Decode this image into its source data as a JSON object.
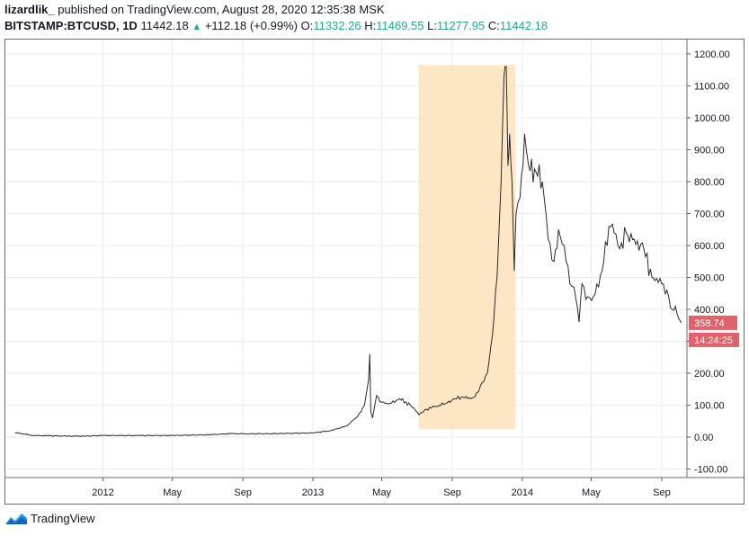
{
  "header": {
    "author": "lizardlik_",
    "published_text": "published on TradingView.com, August 28, 2020 12:35:38 MSK",
    "symbol": "BITSTAMP:BTCUSD, 1D",
    "last": "11442.18",
    "change": "+112.18 (+0.99%)",
    "o_label": "O:",
    "o_value": "11332.26",
    "h_label": "H:",
    "h_value": "11469.55",
    "l_label": "L:",
    "l_value": "11277.95",
    "c_label": "C:",
    "c_value": "11442.18"
  },
  "footer": {
    "brand": "TradingView"
  },
  "colors": {
    "line": "#2a2a2a",
    "highlight": "#fde3bd",
    "badge": "#e0636b",
    "up": "#26a69a",
    "grid": "#e9edf3"
  },
  "chart_data": {
    "type": "line",
    "y_ticks": [
      "1200.00",
      "1100.00",
      "1000.00",
      "900.00",
      "800.00",
      "700.00",
      "600.00",
      "500.00",
      "400.00",
      "300.00",
      "200.00",
      "100.00",
      "0.00",
      "-100.00"
    ],
    "ylim": [
      -100,
      1200
    ],
    "x_ticks": [
      "2012",
      "May",
      "Sep",
      "2013",
      "May",
      "Sep",
      "2014",
      "May",
      "Sep"
    ],
    "x_tick_dates": [
      "2012-01-01",
      "2012-05-01",
      "2012-09-01",
      "2013-01-01",
      "2013-05-01",
      "2013-09-01",
      "2014-01-01",
      "2014-05-01",
      "2014-09-01"
    ],
    "x_range": [
      "2011-07-15",
      "2014-10-15"
    ],
    "highlight": {
      "x_start": "2013-07-04",
      "x_end": "2013-12-20",
      "y_low": 25,
      "y_high": 1165
    },
    "price_badge": "358.74",
    "time_badge": "14:24:25",
    "series": [
      {
        "points": [
          [
            "2011-08-01",
            14
          ],
          [
            "2011-09-01",
            5
          ],
          [
            "2011-10-01",
            4
          ],
          [
            "2011-11-01",
            3
          ],
          [
            "2011-12-01",
            3
          ],
          [
            "2012-01-01",
            5
          ],
          [
            "2012-03-01",
            5
          ],
          [
            "2012-05-01",
            5
          ],
          [
            "2012-07-01",
            7
          ],
          [
            "2012-08-15",
            11
          ],
          [
            "2012-09-01",
            10
          ],
          [
            "2012-11-01",
            11
          ],
          [
            "2013-01-01",
            13
          ],
          [
            "2013-02-01",
            20
          ],
          [
            "2013-03-01",
            35
          ],
          [
            "2013-03-20",
            65
          ],
          [
            "2013-04-01",
            100
          ],
          [
            "2013-04-08",
            180
          ],
          [
            "2013-04-10",
            260
          ],
          [
            "2013-04-12",
            80
          ],
          [
            "2013-04-15",
            60
          ],
          [
            "2013-04-22",
            130
          ],
          [
            "2013-05-01",
            110
          ],
          [
            "2013-05-15",
            105
          ],
          [
            "2013-06-01",
            120
          ],
          [
            "2013-06-20",
            100
          ],
          [
            "2013-07-05",
            70
          ],
          [
            "2013-07-15",
            85
          ],
          [
            "2013-08-01",
            95
          ],
          [
            "2013-08-20",
            105
          ],
          [
            "2013-09-05",
            120
          ],
          [
            "2013-09-20",
            125
          ],
          [
            "2013-10-03",
            120
          ],
          [
            "2013-10-10",
            125
          ],
          [
            "2013-10-20",
            160
          ],
          [
            "2013-11-01",
            200
          ],
          [
            "2013-11-10",
            320
          ],
          [
            "2013-11-18",
            500
          ],
          [
            "2013-11-25",
            800
          ],
          [
            "2013-11-30",
            1130
          ],
          [
            "2013-12-04",
            1160
          ],
          [
            "2013-12-07",
            850
          ],
          [
            "2013-12-10",
            950
          ],
          [
            "2013-12-14",
            800
          ],
          [
            "2013-12-18",
            520
          ],
          [
            "2013-12-21",
            700
          ],
          [
            "2013-12-28",
            750
          ],
          [
            "2014-01-05",
            950
          ],
          [
            "2014-01-12",
            850
          ],
          [
            "2014-01-25",
            830
          ],
          [
            "2014-02-05",
            800
          ],
          [
            "2014-02-15",
            620
          ],
          [
            "2014-02-25",
            550
          ],
          [
            "2014-03-05",
            650
          ],
          [
            "2014-03-15",
            600
          ],
          [
            "2014-03-25",
            480
          ],
          [
            "2014-04-01",
            470
          ],
          [
            "2014-04-10",
            360
          ],
          [
            "2014-04-15",
            480
          ],
          [
            "2014-04-25",
            440
          ],
          [
            "2014-05-05",
            440
          ],
          [
            "2014-05-20",
            520
          ],
          [
            "2014-06-01",
            660
          ],
          [
            "2014-06-10",
            640
          ],
          [
            "2014-06-20",
            590
          ],
          [
            "2014-07-01",
            640
          ],
          [
            "2014-07-15",
            620
          ],
          [
            "2014-08-01",
            590
          ],
          [
            "2014-08-15",
            500
          ],
          [
            "2014-08-20",
            490
          ],
          [
            "2014-09-01",
            480
          ],
          [
            "2014-09-10",
            460
          ],
          [
            "2014-09-20",
            400
          ],
          [
            "2014-09-25",
            410
          ],
          [
            "2014-10-01",
            370
          ],
          [
            "2014-10-05",
            358
          ]
        ]
      }
    ]
  }
}
